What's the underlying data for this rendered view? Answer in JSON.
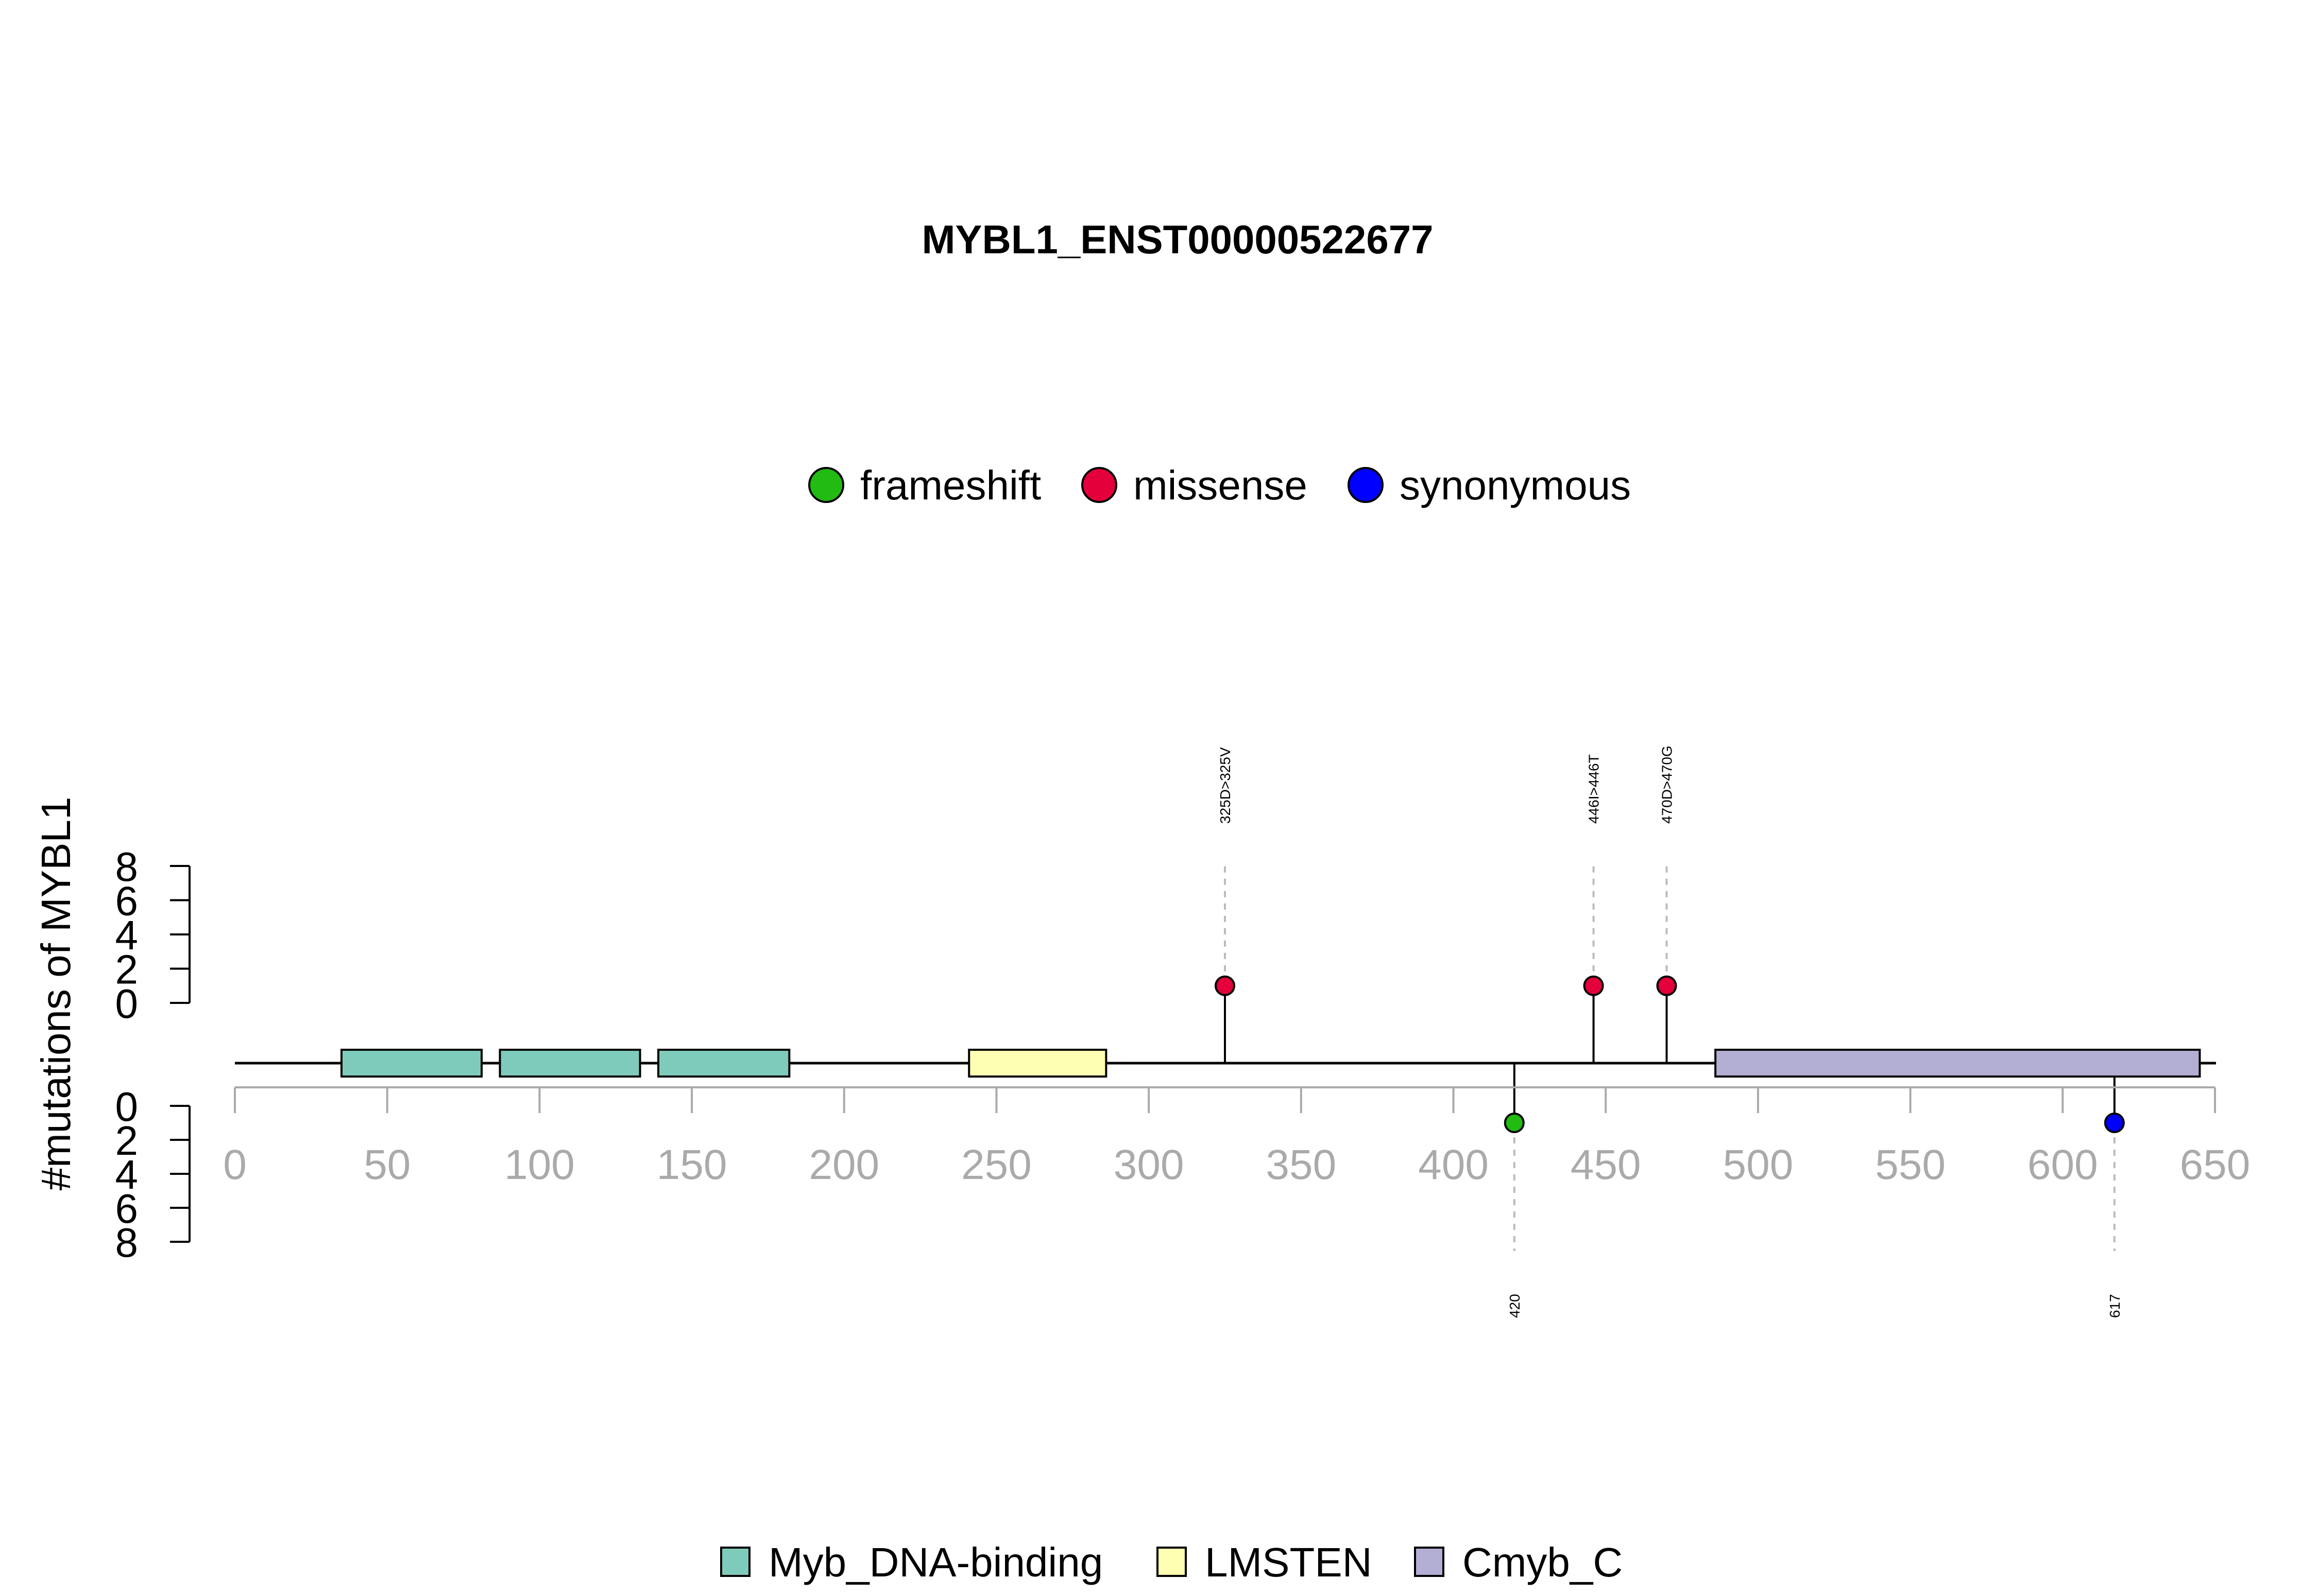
{
  "chart_data": {
    "type": "lollipop",
    "title": "MYBL1_ENST00000522677",
    "ylabel": "#mutations of MYBL1",
    "xlim": [
      0,
      650
    ],
    "x_ticks": [
      "0",
      "50",
      "100",
      "150",
      "200",
      "250",
      "300",
      "350",
      "400",
      "450",
      "500",
      "550",
      "600",
      "650"
    ],
    "x_tick_values": [
      0,
      50,
      100,
      150,
      200,
      250,
      300,
      350,
      400,
      450,
      500,
      550,
      600,
      650
    ],
    "y_upper_ticks": [
      "0",
      "2",
      "4",
      "6",
      "8"
    ],
    "y_lower_ticks": [
      "0",
      "2",
      "4",
      "6",
      "8"
    ],
    "y_tick_values": [
      0,
      2,
      4,
      6,
      8
    ],
    "ylim": [
      0,
      8
    ],
    "mutation_legend": [
      {
        "label": "frameshift",
        "color": "#22bb11"
      },
      {
        "label": "missense",
        "color": "#e4003a"
      },
      {
        "label": "synonymous",
        "color": "#0000ff"
      }
    ],
    "domain_legend": [
      {
        "label": "Myb_DNA-binding",
        "color": "#7fcbbb"
      },
      {
        "label": "LMSTEN",
        "color": "#ffffb3"
      },
      {
        "label": "Cmyb_C",
        "color": "#b3aed3"
      }
    ],
    "domains": [
      {
        "name": "Myb_DNA-binding",
        "start": 35,
        "end": 81
      },
      {
        "name": "Myb_DNA-binding",
        "start": 87,
        "end": 133
      },
      {
        "name": "Myb_DNA-binding",
        "start": 139,
        "end": 182
      },
      {
        "name": "LMSTEN",
        "start": 241,
        "end": 286
      },
      {
        "name": "Cmyb_C",
        "start": 486,
        "end": 645
      }
    ],
    "mutations": [
      {
        "position": 325,
        "count": 1,
        "type": "missense",
        "side": "up",
        "label": "325D>325V"
      },
      {
        "position": 446,
        "count": 1,
        "type": "missense",
        "side": "up",
        "label": "446I>446T"
      },
      {
        "position": 470,
        "count": 1,
        "type": "missense",
        "side": "up",
        "label": "470D>470G"
      },
      {
        "position": 420,
        "count": 1,
        "type": "frameshift",
        "side": "down",
        "label": "420"
      },
      {
        "position": 617,
        "count": 1,
        "type": "synonymous",
        "side": "down",
        "label": "617"
      }
    ]
  }
}
